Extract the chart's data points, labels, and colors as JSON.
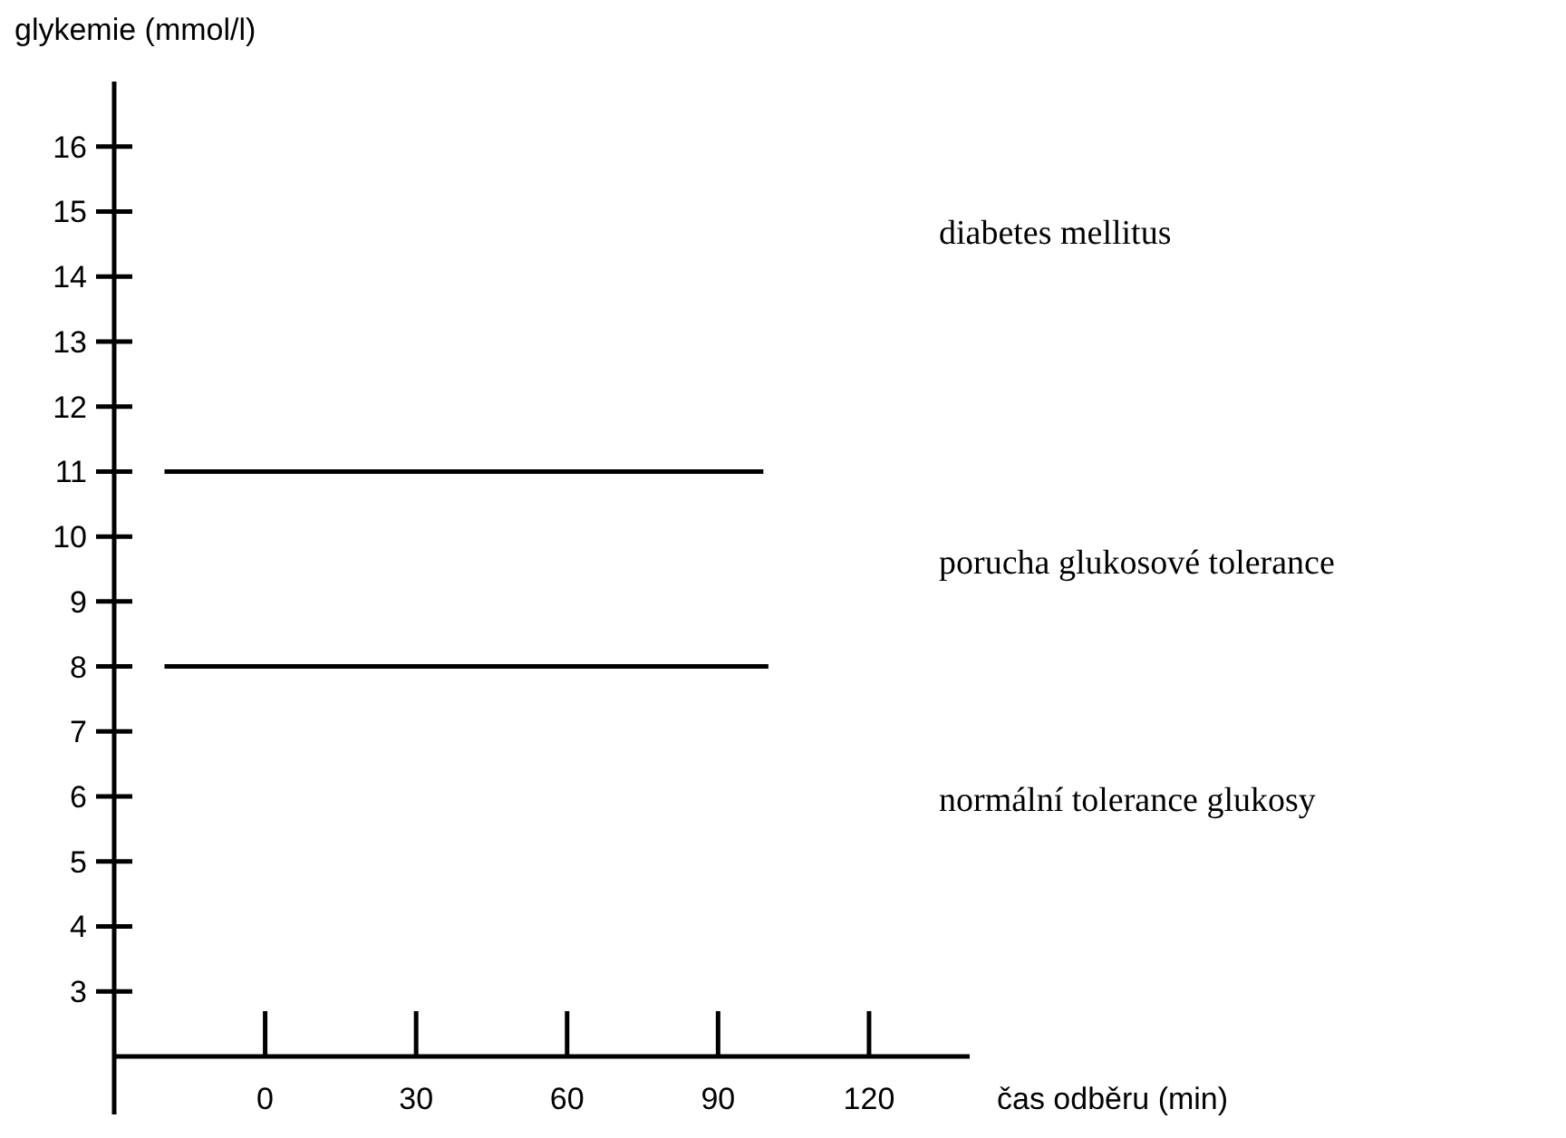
{
  "chart_data": {
    "type": "line",
    "xlabel": "čas odběru (min)",
    "ylabel": "glykemie (mmol/l)",
    "xlim": [
      -30,
      140
    ],
    "xticks": [
      0,
      30,
      60,
      90,
      120
    ],
    "ylim": [
      2,
      17
    ],
    "yticks": [
      3,
      4,
      5,
      6,
      7,
      8,
      9,
      10,
      11,
      12,
      13,
      14,
      15,
      16
    ],
    "series": [
      {
        "x": [
          -20,
          99
        ],
        "values": [
          11,
          11
        ],
        "color": "#000000"
      },
      {
        "x": [
          -20,
          100
        ],
        "values": [
          8,
          8
        ],
        "color": "#000000"
      }
    ],
    "marker": "none",
    "line_style": "solid",
    "grid": false,
    "annotations": [
      "diabetes mellitus",
      "porucha glukosové tolerance",
      "normální tolerance glukosy"
    ]
  }
}
